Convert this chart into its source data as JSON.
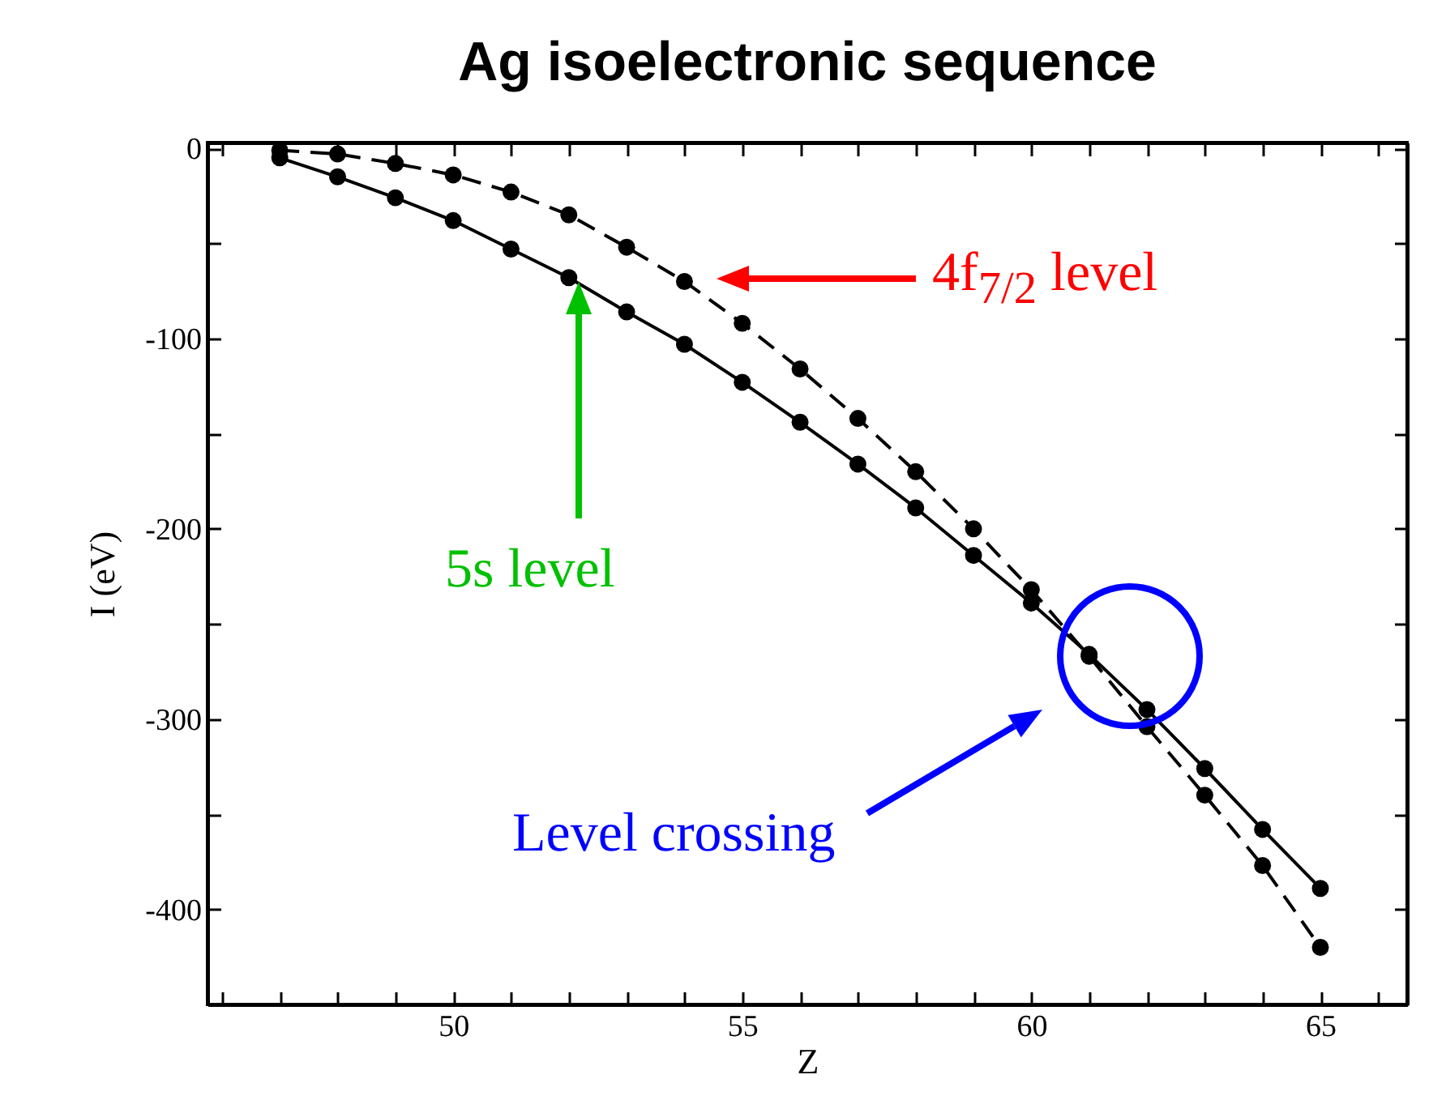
{
  "chart_data": {
    "type": "line",
    "title": "Ag isoelectronic sequence",
    "xlabel": "Z",
    "ylabel": "I (eV)",
    "x": [
      47,
      48,
      49,
      50,
      51,
      52,
      53,
      54,
      55,
      56,
      57,
      58,
      59,
      60,
      61,
      62,
      63,
      64,
      65
    ],
    "series": [
      {
        "color": "#000000",
        "line_style": "dashed",
        "values": [
          -1,
          -3,
          -8,
          -14,
          -23,
          -35,
          -52,
          -70,
          -92,
          -116,
          -142,
          -170,
          -200,
          -232,
          -267,
          -304,
          -340,
          -377,
          -420
        ]
      },
      {
        "color": "#000000",
        "line_style": "solid",
        "values": [
          -5,
          -15,
          -26,
          -38,
          -53,
          -68,
          -86,
          -103,
          -123,
          -144,
          -166,
          -189,
          -214,
          -239,
          -266,
          -295,
          -326,
          -358,
          -389
        ]
      }
    ],
    "marker": "circle",
    "grid": false,
    "xlim": [
      45.75,
      66.5
    ],
    "ylim": [
      -450,
      3
    ],
    "xticks": [
      {
        "value": 46,
        "label": null
      },
      {
        "value": 47,
        "label": null
      },
      {
        "value": 48,
        "label": null
      },
      {
        "value": 49,
        "label": null
      },
      50,
      {
        "value": 51,
        "label": null
      },
      {
        "value": 52,
        "label": null
      },
      {
        "value": 53,
        "label": null
      },
      {
        "value": 54,
        "label": null
      },
      55,
      {
        "value": 56,
        "label": null
      },
      {
        "value": 57,
        "label": null
      },
      {
        "value": 58,
        "label": null
      },
      {
        "value": 59,
        "label": null
      },
      60,
      {
        "value": 61,
        "label": null
      },
      {
        "value": 62,
        "label": null
      },
      {
        "value": 63,
        "label": null
      },
      {
        "value": 64,
        "label": null
      },
      65,
      {
        "value": 66,
        "label": null
      }
    ],
    "yticks": [
      {
        "value": -450,
        "label": null
      },
      -400,
      {
        "value": -350,
        "label": null
      },
      -300,
      {
        "value": -250,
        "label": null
      },
      -200,
      {
        "value": -150,
        "label": null
      },
      -100,
      {
        "value": -50,
        "label": null
      },
      0
    ],
    "annotations": [
      "4f$_{7/2}$ level",
      "5s level",
      "Level crossing"
    ]
  }
}
